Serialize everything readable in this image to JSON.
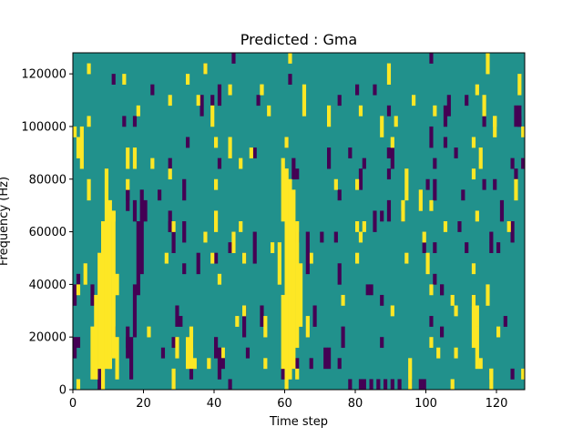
{
  "chart_data": {
    "type": "heatmap",
    "title": "Predicted : Gma",
    "xlabel": "Time step",
    "ylabel": "Frequency (Hz)",
    "xlim": [
      0,
      128
    ],
    "ylim": [
      0,
      128000
    ],
    "x_ticks": [
      0,
      20,
      40,
      60,
      80,
      100,
      120
    ],
    "x_tick_labels": [
      "0",
      "20",
      "40",
      "60",
      "80",
      "100",
      "120"
    ],
    "y_ticks": [
      0,
      20000,
      40000,
      60000,
      80000,
      100000,
      120000
    ],
    "y_tick_labels": [
      "0",
      "20000",
      "40000",
      "60000",
      "80000",
      "100000",
      "120000"
    ],
    "grid": false,
    "levels": {
      "low": -1,
      "mid": 0,
      "high": 1
    },
    "colors": {
      "low": "#440154",
      "mid": "#21918c",
      "high": "#fde725"
    },
    "background_level": 0,
    "high_segments": [
      [
        1,
        88000,
        96000
      ],
      [
        2,
        84000,
        100000
      ],
      [
        4,
        100000,
        104000
      ],
      [
        5,
        4000,
        24000
      ],
      [
        6,
        4000,
        36000
      ],
      [
        7,
        8000,
        52000
      ],
      [
        8,
        0,
        64000
      ],
      [
        9,
        8000,
        84000
      ],
      [
        10,
        8000,
        72000
      ],
      [
        11,
        12000,
        68000
      ],
      [
        12,
        4000,
        20000
      ],
      [
        12,
        36000,
        44000
      ],
      [
        32,
        8000,
        20000
      ],
      [
        33,
        8000,
        24000
      ],
      [
        34,
        8000,
        12000
      ],
      [
        54,
        20000,
        28000
      ],
      [
        58,
        40000,
        56000
      ],
      [
        59,
        8000,
        36000
      ],
      [
        59,
        64000,
        88000
      ],
      [
        60,
        0,
        84000
      ],
      [
        61,
        4000,
        80000
      ],
      [
        62,
        8000,
        76000
      ],
      [
        63,
        16000,
        64000
      ],
      [
        64,
        24000,
        48000
      ],
      [
        65,
        104000,
        116000
      ],
      [
        94,
        48000,
        52000
      ],
      [
        113,
        16000,
        36000
      ],
      [
        114,
        8000,
        24000
      ],
      [
        114,
        64000,
        68000
      ],
      [
        127,
        4000,
        8000
      ]
    ],
    "low_segments": [
      [
        16,
        4000,
        20000
      ],
      [
        17,
        20000,
        40000
      ],
      [
        18,
        36000,
        64000
      ],
      [
        19,
        44000,
        76000
      ],
      [
        17,
        64000,
        72000
      ],
      [
        20,
        64000,
        72000
      ],
      [
        41,
        4000,
        16000
      ],
      [
        42,
        8000,
        12000
      ],
      [
        66,
        44000,
        60000
      ],
      [
        68,
        24000,
        32000
      ],
      [
        72,
        8000,
        16000
      ],
      [
        76,
        16000,
        24000
      ],
      [
        78,
        0,
        4000
      ],
      [
        81,
        0,
        4000
      ],
      [
        82,
        0,
        4000
      ],
      [
        84,
        0,
        4000
      ],
      [
        86,
        0,
        4000
      ],
      [
        88,
        0,
        4000
      ],
      [
        90,
        0,
        4000
      ],
      [
        92,
        0,
        4000
      ],
      [
        67,
        8000,
        12000
      ],
      [
        72,
        84000,
        92000
      ],
      [
        74,
        56000,
        60000
      ]
    ],
    "extra_cells": {
      "seed": 12345,
      "high_count": 110,
      "low_count": 130,
      "column_range": [
        0,
        128
      ],
      "row_count": 32
    }
  }
}
